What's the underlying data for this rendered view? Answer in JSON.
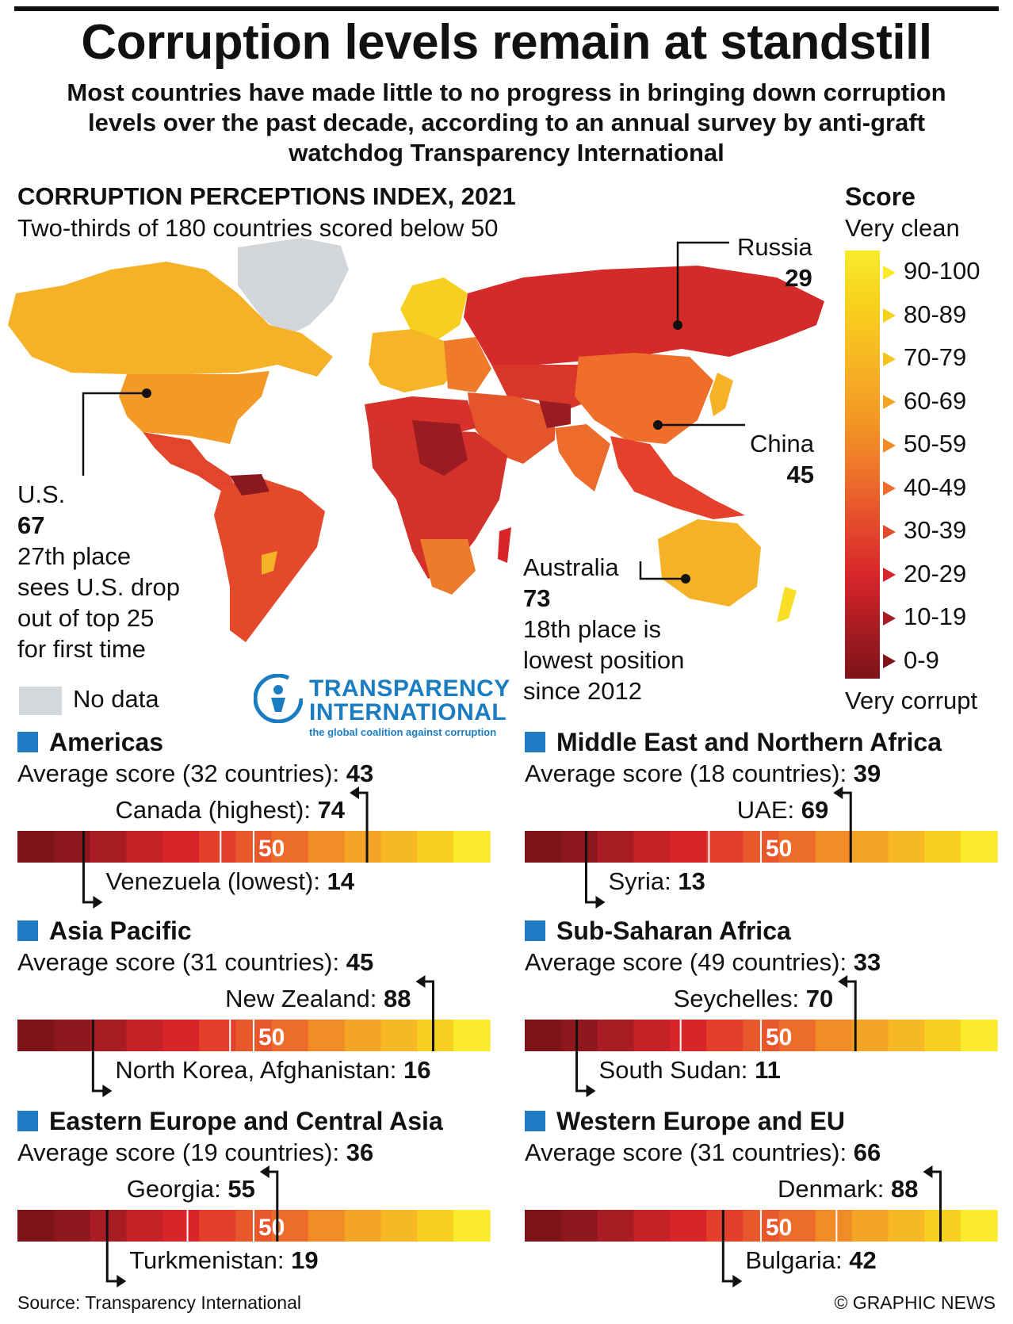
{
  "title": "Corruption levels remain at standstill",
  "subtitle": "Most countries have made little to no progress in bringing down corruption levels over the past decade, according to an annual survey by anti-graft watchdog Transparency International",
  "map_section": {
    "heading": "CORRUPTION PERCEPTIONS INDEX, 2021",
    "subheading": "Two-thirds of 180 countries scored below 50",
    "no_data_label": "No data",
    "callouts": {
      "russia": {
        "name": "Russia",
        "score": "29"
      },
      "china": {
        "name": "China",
        "score": "45"
      },
      "us": {
        "name": "U.S.",
        "score": "67",
        "note_lines": [
          "27th place",
          "sees U.S. drop",
          "out of top 25",
          "for first time"
        ]
      },
      "australia": {
        "name": "Australia",
        "score": "73",
        "note_lines": [
          "18th place is",
          "lowest position",
          "since 2012"
        ]
      }
    }
  },
  "logo": {
    "line1": "TRANSPARENCY",
    "line2": "INTERNATIONAL",
    "tagline": "the global coalition against corruption"
  },
  "legend": {
    "title": "Score",
    "top_label": "Very clean",
    "bottom_label": "Very corrupt",
    "ranges": [
      "90-100",
      "80-89",
      "70-79",
      "60-69",
      "50-59",
      "40-49",
      "30-39",
      "20-29",
      "10-19",
      "0-9"
    ],
    "range_colors": [
      "#f9ea2c",
      "#f7d21b",
      "#f7c21a",
      "#f4a424",
      "#f08b27",
      "#ec6d2b",
      "#e44a2c",
      "#d8252a",
      "#a81c23",
      "#7d1419"
    ]
  },
  "chart_data": [
    {
      "type": "bar",
      "region": "Americas",
      "average_label": "Average score (32 countries):",
      "average": 43,
      "highest": {
        "label": "Canada (highest):",
        "value": 74
      },
      "lowest": {
        "label": "Venezuela (lowest):",
        "value": 14
      },
      "midpoint": 50,
      "range": [
        0,
        100
      ]
    },
    {
      "type": "bar",
      "region": "Middle East and Northern Africa",
      "average_label": "Average score (18 countries):",
      "average": 39,
      "highest": {
        "label": "UAE:",
        "value": 69
      },
      "lowest": {
        "label": "Syria:",
        "value": 13
      },
      "midpoint": 50,
      "range": [
        0,
        100
      ]
    },
    {
      "type": "bar",
      "region": "Asia Pacific",
      "average_label": "Average score (31 countries):",
      "average": 45,
      "highest": {
        "label": "New Zealand:",
        "value": 88
      },
      "lowest": {
        "label": "North Korea, Afghanistan:",
        "value": 16
      },
      "midpoint": 50,
      "range": [
        0,
        100
      ]
    },
    {
      "type": "bar",
      "region": "Sub-Saharan Africa",
      "average_label": "Average score (49 countries):",
      "average": 33,
      "highest": {
        "label": "Seychelles:",
        "value": 70
      },
      "lowest": {
        "label": "South Sudan:",
        "value": 11
      },
      "midpoint": 50,
      "range": [
        0,
        100
      ]
    },
    {
      "type": "bar",
      "region": "Eastern Europe and Central Asia",
      "average_label": "Average score (19 countries):",
      "average": 36,
      "highest": {
        "label": "Georgia:",
        "value": 55
      },
      "lowest": {
        "label": "Turkmenistan:",
        "value": 19
      },
      "midpoint": 50,
      "range": [
        0,
        100
      ]
    },
    {
      "type": "bar",
      "region": "Western Europe and EU",
      "average_label": "Average score (31 countries):",
      "average": 66,
      "highest": {
        "label": "Denmark:",
        "value": 88
      },
      "lowest": {
        "label": "Bulgaria:",
        "value": 42
      },
      "midpoint": 50,
      "range": [
        0,
        100
      ]
    }
  ],
  "footer": {
    "source": "Source: Transparency International",
    "credit": "© GRAPHIC NEWS"
  }
}
